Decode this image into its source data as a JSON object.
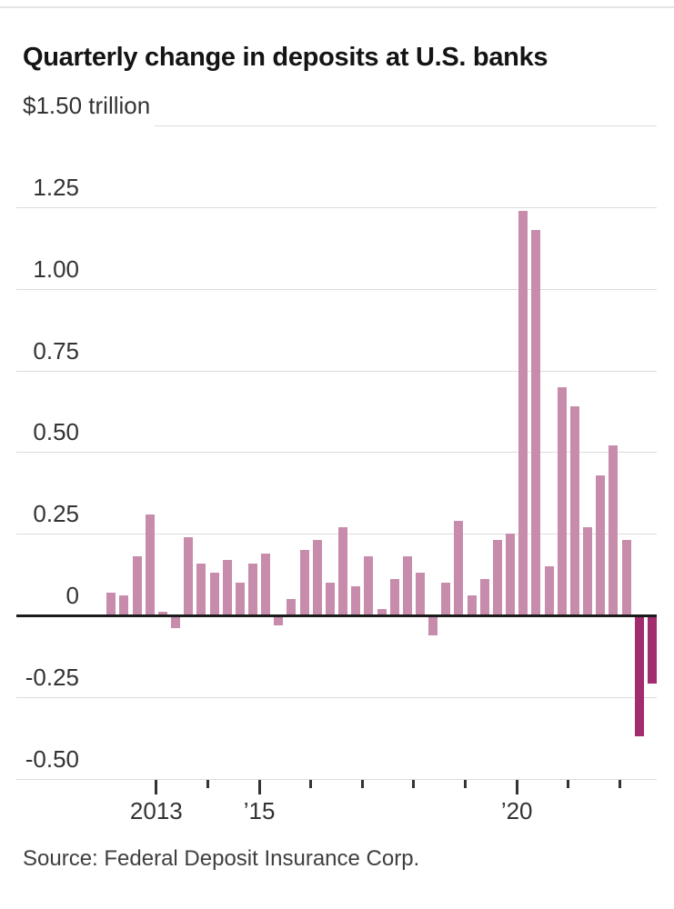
{
  "header": {
    "title": "Quarterly change in deposits at U.S. banks"
  },
  "footer": {
    "source": "Source: Federal Deposit Insurance Corp."
  },
  "chart_data": {
    "type": "bar",
    "title": "Quarterly change in deposits at U.S. banks",
    "ylabel": "$ trillion",
    "ylim": [
      -0.5,
      1.5
    ],
    "grid": "horizontal",
    "categories": [
      "2012 Q1",
      "2012 Q2",
      "2012 Q3",
      "2012 Q4",
      "2013 Q1",
      "2013 Q2",
      "2013 Q3",
      "2013 Q4",
      "2014 Q1",
      "2014 Q2",
      "2014 Q3",
      "2014 Q4",
      "2015 Q1",
      "2015 Q2",
      "2015 Q3",
      "2015 Q4",
      "2016 Q1",
      "2016 Q2",
      "2016 Q3",
      "2016 Q4",
      "2017 Q1",
      "2017 Q2",
      "2017 Q3",
      "2017 Q4",
      "2018 Q1",
      "2018 Q2",
      "2018 Q3",
      "2018 Q4",
      "2019 Q1",
      "2019 Q2",
      "2019 Q3",
      "2019 Q4",
      "2020 Q1",
      "2020 Q2",
      "2020 Q3",
      "2020 Q4",
      "2021 Q1",
      "2021 Q2",
      "2021 Q3",
      "2021 Q4",
      "2022 Q1",
      "2022 Q2",
      "2022 Q3"
    ],
    "values": [
      0.07,
      0.06,
      0.18,
      0.31,
      0.01,
      -0.04,
      0.24,
      0.16,
      0.13,
      0.17,
      0.1,
      0.16,
      0.19,
      -0.03,
      0.05,
      0.2,
      0.23,
      0.1,
      0.27,
      0.09,
      0.18,
      0.02,
      0.11,
      0.18,
      0.13,
      -0.06,
      0.1,
      0.29,
      0.06,
      0.11,
      0.23,
      0.25,
      1.24,
      1.18,
      0.15,
      0.7,
      0.64,
      0.27,
      0.43,
      0.52,
      0.23,
      -0.37,
      -0.21
    ],
    "y_ticks": [
      {
        "v": 1.5,
        "label": "$1.50 trillion",
        "inline_left": true
      },
      {
        "v": 1.25,
        "label": "1.25"
      },
      {
        "v": 1.0,
        "label": "1.00"
      },
      {
        "v": 0.75,
        "label": "0.75"
      },
      {
        "v": 0.5,
        "label": "0.50"
      },
      {
        "v": 0.25,
        "label": "0.25"
      },
      {
        "v": 0,
        "label": "0",
        "zero": true
      },
      {
        "v": -0.25,
        "label": "-0.25"
      },
      {
        "v": -0.5,
        "label": "-0.50",
        "baseline": true
      }
    ],
    "x_ticks": [
      {
        "year": 2013,
        "label": "2013",
        "major": true
      },
      {
        "year": 2014,
        "label": "",
        "major": false
      },
      {
        "year": 2015,
        "label": "’15",
        "major": true
      },
      {
        "year": 2016,
        "label": "",
        "major": false
      },
      {
        "year": 2017,
        "label": "",
        "major": false
      },
      {
        "year": 2018,
        "label": "",
        "major": false
      },
      {
        "year": 2019,
        "label": "",
        "major": false
      },
      {
        "year": 2020,
        "label": "’20",
        "major": true
      },
      {
        "year": 2021,
        "label": "",
        "major": false
      },
      {
        "year": 2022,
        "label": "",
        "major": false
      }
    ],
    "highlight_indices": [
      41,
      42
    ],
    "colors": {
      "bar": "#c78cab",
      "highlight": "#a12c6e",
      "zero_line": "#1b1b1b",
      "grid": "#dcdcdc",
      "text": "#333333"
    },
    "legend": "none"
  }
}
